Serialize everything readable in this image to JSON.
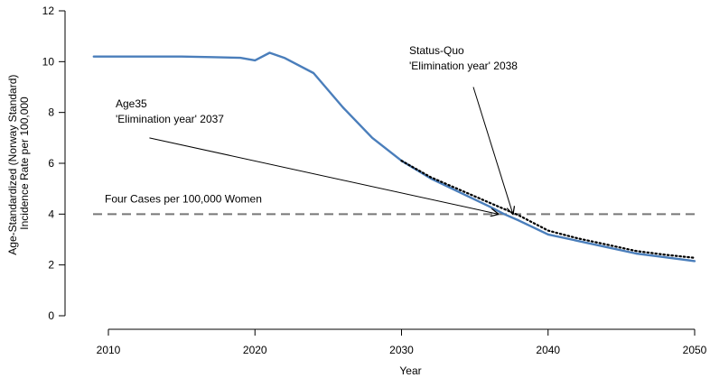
{
  "chart_data": {
    "type": "line",
    "xlabel": "Year",
    "ylabel_lines": [
      "Age-Standardized (Norway Standard)",
      "Incidence Rate per 100,000"
    ],
    "xlim": [
      2009,
      2050
    ],
    "ylim": [
      0,
      12
    ],
    "x_ticks": [
      2010,
      2020,
      2030,
      2040,
      2050
    ],
    "y_ticks": [
      0,
      2,
      4,
      6,
      8,
      10,
      12
    ],
    "grid": false,
    "series": [
      {
        "style": "solid",
        "color": "#4a7ebb",
        "x": [
          2009,
          2012,
          2015,
          2017,
          2019,
          2020,
          2021,
          2022,
          2024,
          2026,
          2028,
          2030,
          2032,
          2034,
          2036,
          2037,
          2038,
          2040,
          2042,
          2044,
          2046,
          2048,
          2050
        ],
        "y": [
          10.2,
          10.2,
          10.2,
          10.18,
          10.15,
          10.05,
          10.35,
          10.15,
          9.55,
          8.2,
          7.0,
          6.1,
          5.4,
          4.85,
          4.3,
          4.0,
          3.75,
          3.2,
          2.95,
          2.7,
          2.45,
          2.3,
          2.15
        ]
      },
      {
        "style": "dotted",
        "color": "#000000",
        "x": [
          2030,
          2032,
          2034,
          2036,
          2037,
          2038,
          2040,
          2042,
          2044,
          2046,
          2048,
          2050
        ],
        "y": [
          6.1,
          5.45,
          4.95,
          4.45,
          4.2,
          3.95,
          3.35,
          3.05,
          2.8,
          2.55,
          2.4,
          2.28
        ]
      }
    ],
    "reference_line": {
      "y": 4,
      "style": "dashed",
      "color": "#777777",
      "label": "Four Cases per 100,000 Women"
    },
    "annotations": [
      {
        "lines": [
          "Age35",
          "'Elimination year' 2037"
        ],
        "arrow_from": [
          2012.8,
          7.0
        ],
        "arrow_to": [
          2036.6,
          4.0
        ]
      },
      {
        "lines": [
          "Status-Quo",
          "'Elimination year' 2038"
        ],
        "arrow_from": [
          2034.9,
          9.0
        ],
        "arrow_to": [
          2037.6,
          4.0
        ]
      }
    ]
  }
}
